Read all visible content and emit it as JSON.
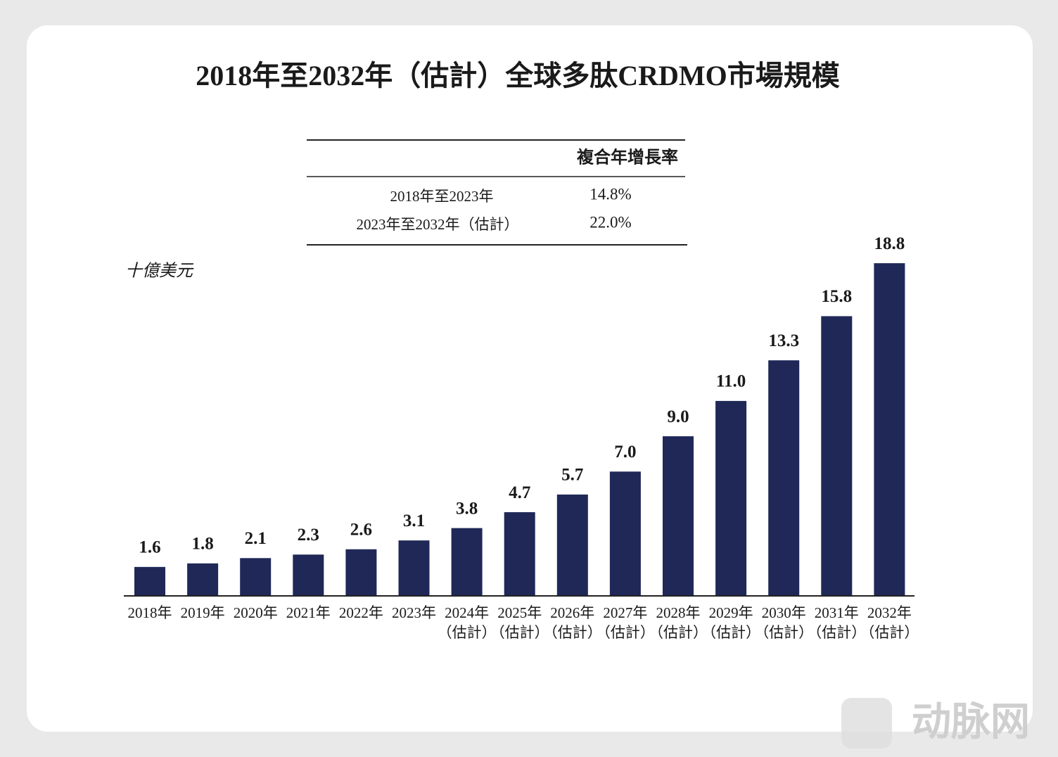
{
  "chart_data": {
    "type": "bar",
    "title": "2018年至2032年（估計）全球多肽CRDMO市場規模",
    "y_label": "十億美元",
    "color": "#1f2857",
    "categories": [
      [
        "2018年"
      ],
      [
        "2019年"
      ],
      [
        "2020年"
      ],
      [
        "2021年"
      ],
      [
        "2022年"
      ],
      [
        "2023年"
      ],
      [
        "2024年",
        "（估計）"
      ],
      [
        "2025年",
        "（估計）"
      ],
      [
        "2026年",
        "（估計）"
      ],
      [
        "2027年",
        "（估計）"
      ],
      [
        "2028年",
        "（估計）"
      ],
      [
        "2029年",
        "（估計）"
      ],
      [
        "2030年",
        "（估計）"
      ],
      [
        "2031年",
        "（估計）"
      ],
      [
        "2032年",
        "（估計）"
      ]
    ],
    "values": [
      1.6,
      1.8,
      2.1,
      2.3,
      2.6,
      3.1,
      3.8,
      4.7,
      5.7,
      7.0,
      9.0,
      11.0,
      13.3,
      15.8,
      18.8
    ],
    "value_labels": [
      "1.6",
      "1.8",
      "2.1",
      "2.3",
      "2.6",
      "3.1",
      "3.8",
      "4.7",
      "5.7",
      "7.0",
      "9.0",
      "11.0",
      "13.3",
      "15.8",
      "18.8"
    ],
    "table": {
      "header": "複合年增長率",
      "rows": [
        [
          "2018年至2023年",
          "14.8%"
        ],
        [
          "2023年至2032年（估計）",
          "22.0%"
        ]
      ]
    },
    "watermark": "动脉网"
  }
}
